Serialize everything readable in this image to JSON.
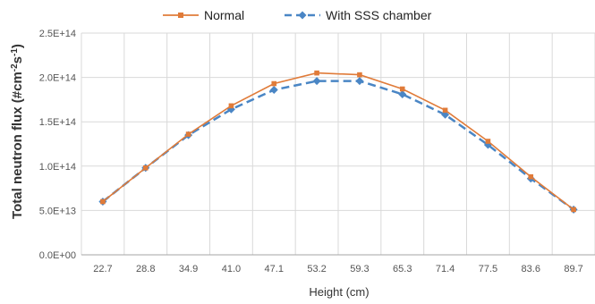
{
  "chart_data": {
    "type": "line",
    "title": "",
    "xlabel": "Height (cm)",
    "ylabel_main": "Total neutron flux (#cm",
    "ylabel_sup1": "-2",
    "ylabel_mid": "s",
    "ylabel_sup2": "-1",
    "ylabel_end": ")",
    "categories": [
      "22.7",
      "28.8",
      "34.9",
      "41.0",
      "47.1",
      "53.2",
      "59.3",
      "65.3",
      "71.4",
      "77.5",
      "83.6",
      "89.7"
    ],
    "y_ticks": [
      "0.0E+00",
      "5.0E+13",
      "1.0E+14",
      "1.5E+14",
      "2.0E+14",
      "2.5E+14"
    ],
    "ylim": [
      0,
      250000000000000.0
    ],
    "grid": true,
    "legend_position": "top-center",
    "series": [
      {
        "name": "Normal",
        "color": "#E07B39",
        "marker": "square",
        "dash": "solid",
        "values": [
          60000000000000.0,
          98000000000000.0,
          136000000000000.0,
          168000000000000.0,
          193000000000000.0,
          205000000000000.0,
          203000000000000.0,
          187000000000000.0,
          163000000000000.0,
          128000000000000.0,
          88000000000000.0,
          51000000000000.0
        ]
      },
      {
        "name": "With SSS chamber",
        "color": "#4A86C5",
        "marker": "diamond",
        "dash": "dashed",
        "values": [
          60000000000000.0,
          98000000000000.0,
          135000000000000.0,
          164000000000000.0,
          186000000000000.0,
          196000000000000.0,
          196000000000000.0,
          181000000000000.0,
          158000000000000.0,
          124000000000000.0,
          86000000000000.0,
          51000000000000.0
        ]
      }
    ]
  }
}
